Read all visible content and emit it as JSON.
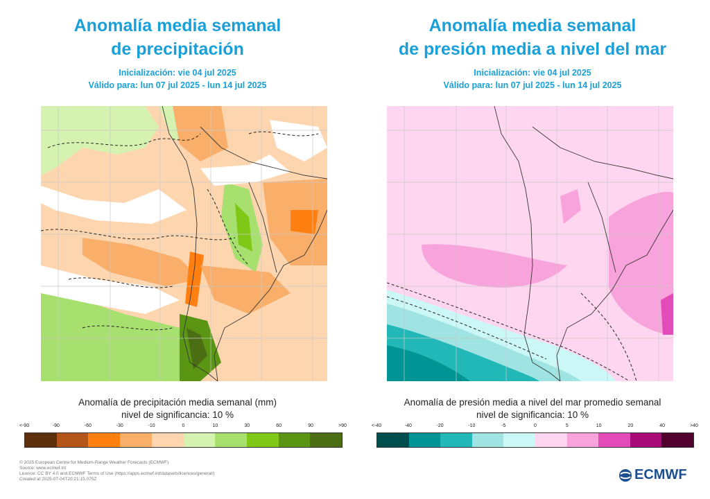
{
  "left": {
    "title_line1": "Anomalía media semanal",
    "title_line2": "de precipitación",
    "init": "Inicialización: vie 04 jul 2025",
    "valid": "Válido para: lun 07 jul 2025 - lun 14 jul 2025",
    "legend_title": "Anomalía de precipitación media semanal (mm)",
    "significance": "nivel de significancia: 10 %",
    "ticks": [
      "<-90",
      "-90",
      "-60",
      "-30",
      "-10",
      "0",
      "10",
      "30",
      "60",
      "90",
      ">90"
    ],
    "colors": [
      "#5e2f0d",
      "#b4551a",
      "#ff7f11",
      "#f9ae6a",
      "#fdd6b0",
      "#d6f2b0",
      "#a8e070",
      "#80c817",
      "#5a9614",
      "#4b6e14"
    ]
  },
  "right": {
    "title_line1": "Anomalía media semanal",
    "title_line2": "de presión media a nivel del mar",
    "init": "Inicialización: vie 04 jul 2025",
    "valid": "Válido para: lun 07 jul 2025 - lun 14 jul 2025",
    "legend_title": "Anomalía de presión media a nivel del mar promedio semanal",
    "significance": "nivel de significancia: 10 %",
    "ticks": [
      "<-40",
      "-40",
      "-20",
      "-10",
      "-5",
      "0",
      "5",
      "10",
      "20",
      "40",
      ">40"
    ],
    "colors": [
      "#004d4d",
      "#009494",
      "#23b8b8",
      "#9fe3e3",
      "#ccf7f7",
      "#ffd6ef",
      "#f9a3dc",
      "#e34bb8",
      "#a80a78",
      "#52002e"
    ]
  },
  "footer": {
    "line1": "© 2025 European Centre for Medium-Range Weather Forecasts (ECMWF)",
    "line2": "Source: www.ecmwf.int",
    "line3": "Licence: CC BY 4.0 and ECMWF Terms of Use (https://apps.ecmwf.int/datasets/licences/general/)",
    "line4": "Created at 2025-07-04T20:21:15.075Z"
  },
  "logo_text": "ECMWF"
}
